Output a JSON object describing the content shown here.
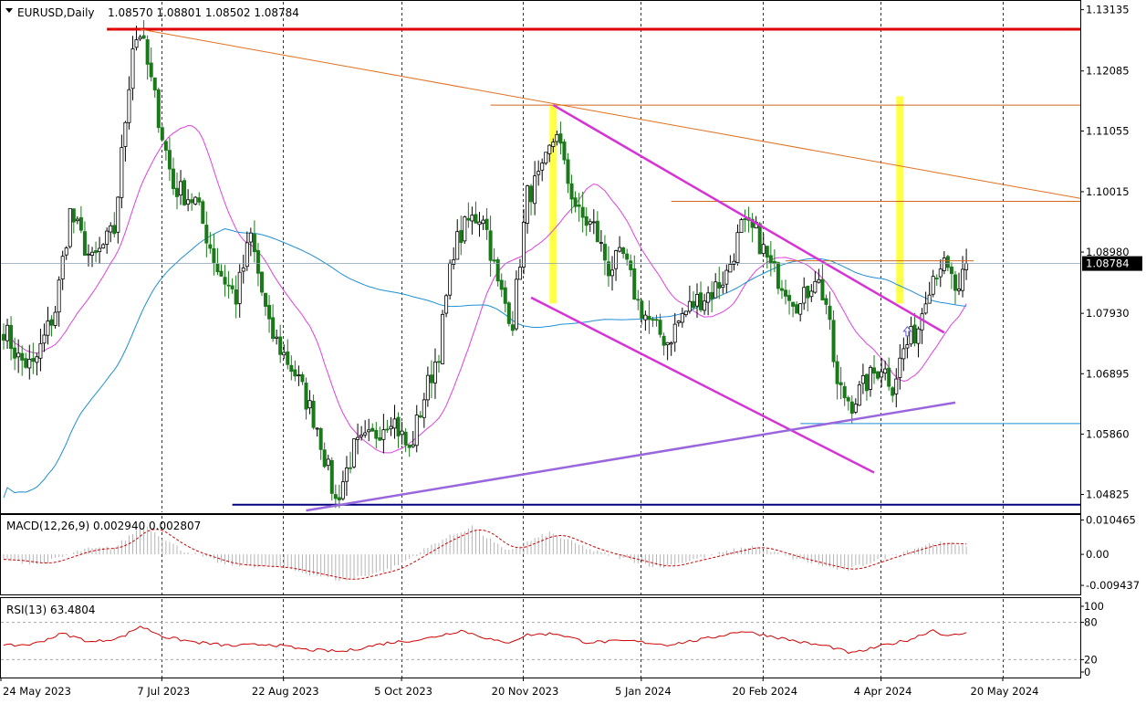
{
  "chart_data": {
    "type": "candlestick",
    "header": {
      "symbol_timeframe": "EURUSD,Daily",
      "ohlc": "1.08570 1.08801 1.08502 1.08784"
    },
    "price_axis": {
      "ticks": [
        "1.13135",
        "1.12085",
        "1.11055",
        "1.10015",
        "1.08980",
        "1.07930",
        "1.06895",
        "1.05860",
        "1.04825"
      ],
      "tick_values": [
        1.13135,
        1.12085,
        1.11055,
        1.10015,
        1.0898,
        1.0793,
        1.06895,
        1.0586,
        1.04825
      ],
      "range": [
        1.0452,
        1.1327
      ],
      "current_price": 1.08784,
      "current_label": "1.08784"
    },
    "date_axis": {
      "labels": [
        "24 May 2023",
        "7 Jul 2023",
        "22 Aug 2023",
        "5 Oct 2023",
        "20 Nov 2023",
        "5 Jan 2024",
        "20 Feb 2024",
        "4 Apr 2024",
        "20 May 2024"
      ],
      "label_bar_index": [
        0,
        31,
        64,
        96,
        129,
        161,
        194,
        226,
        259
      ],
      "last_bar_index": 261
    },
    "key_points": [
      {
        "bar": 0,
        "close": 1.0768
      },
      {
        "bar": 4,
        "close": 1.0715
      },
      {
        "bar": 8,
        "close": 1.07
      },
      {
        "bar": 14,
        "close": 1.08
      },
      {
        "bar": 18,
        "close": 1.0965
      },
      {
        "bar": 24,
        "close": 1.088
      },
      {
        "bar": 30,
        "close": 1.0935
      },
      {
        "bar": 35,
        "close": 1.1255
      },
      {
        "bar": 37,
        "close": 1.1275
      },
      {
        "bar": 41,
        "close": 1.116
      },
      {
        "bar": 46,
        "close": 1.101
      },
      {
        "bar": 52,
        "close": 1.0985
      },
      {
        "bar": 58,
        "close": 1.087
      },
      {
        "bar": 63,
        "close": 1.082
      },
      {
        "bar": 67,
        "close": 1.0925
      },
      {
        "bar": 72,
        "close": 1.0765
      },
      {
        "bar": 79,
        "close": 1.069
      },
      {
        "bar": 85,
        "close": 1.06
      },
      {
        "bar": 90,
        "close": 1.047
      },
      {
        "bar": 95,
        "close": 1.056
      },
      {
        "bar": 100,
        "close": 1.058
      },
      {
        "bar": 105,
        "close": 1.062
      },
      {
        "bar": 110,
        "close": 1.0555
      },
      {
        "bar": 114,
        "close": 1.065
      },
      {
        "bar": 118,
        "close": 1.073
      },
      {
        "bar": 122,
        "close": 1.0905
      },
      {
        "bar": 126,
        "close": 1.095
      },
      {
        "bar": 130,
        "close": 1.0965
      },
      {
        "bar": 134,
        "close": 1.084
      },
      {
        "bar": 138,
        "close": 1.078
      },
      {
        "bar": 142,
        "close": 1.0995
      },
      {
        "bar": 146,
        "close": 1.103
      },
      {
        "bar": 150,
        "close": 1.111
      },
      {
        "bar": 152,
        "close": 1.104
      },
      {
        "bar": 156,
        "close": 1.096
      },
      {
        "bar": 160,
        "close": 1.094
      },
      {
        "bar": 164,
        "close": 1.087
      },
      {
        "bar": 168,
        "close": 1.089
      },
      {
        "bar": 172,
        "close": 1.081
      },
      {
        "bar": 176,
        "close": 1.077
      },
      {
        "bar": 180,
        "close": 1.0745
      },
      {
        "bar": 184,
        "close": 1.079
      },
      {
        "bar": 188,
        "close": 1.0815
      },
      {
        "bar": 192,
        "close": 1.083
      },
      {
        "bar": 196,
        "close": 1.086
      },
      {
        "bar": 200,
        "close": 1.094
      },
      {
        "bar": 204,
        "close": 1.093
      },
      {
        "bar": 208,
        "close": 1.087
      },
      {
        "bar": 212,
        "close": 1.084
      },
      {
        "bar": 216,
        "close": 1.0805
      },
      {
        "bar": 220,
        "close": 1.086
      },
      {
        "bar": 223,
        "close": 1.081
      },
      {
        "bar": 226,
        "close": 1.0665
      },
      {
        "bar": 230,
        "close": 1.064
      },
      {
        "bar": 234,
        "close": 1.0675
      },
      {
        "bar": 238,
        "close": 1.0705
      },
      {
        "bar": 241,
        "close": 1.067
      },
      {
        "bar": 244,
        "close": 1.073
      },
      {
        "bar": 248,
        "close": 1.077
      },
      {
        "bar": 250,
        "close": 1.083
      },
      {
        "bar": 252,
        "close": 1.086
      },
      {
        "bar": 254,
        "close": 1.088
      },
      {
        "bar": 257,
        "close": 1.085
      },
      {
        "bar": 259,
        "close": 1.082
      },
      {
        "bar": 261,
        "close": 1.0878
      }
    ],
    "overlays": {
      "ma_fast_color": "#e040e0",
      "ma_slow_color": "#1e8fd6",
      "bull_color": "#000000",
      "bear_color": "#1a7a1a"
    },
    "drawings": [
      {
        "type": "hline",
        "price": 1.128,
        "from_bar": 28,
        "color": "#e00000"
      },
      {
        "type": "hline",
        "price": 1.115,
        "from_bar": 132,
        "color": "#d2691e"
      },
      {
        "type": "hline",
        "price": 1.0985,
        "from_bar": 181,
        "color": "#d2691e"
      },
      {
        "type": "hline",
        "price": 1.0883,
        "from_bar": 212,
        "to_bar": 263,
        "color": "#d2691e"
      },
      {
        "type": "hline",
        "price": 1.0604,
        "from_bar": 216,
        "color": "#1e8fd6"
      },
      {
        "type": "hline",
        "price": 1.0465,
        "from_bar": 62,
        "color": "#00007f"
      },
      {
        "type": "trend",
        "from": [
          37,
          1.128
        ],
        "to": [
          300,
          1.099
        ],
        "color": "#e07020"
      },
      {
        "type": "trend",
        "from": [
          149,
          1.115
        ],
        "to": [
          255,
          1.076
        ],
        "color": "#d633d6"
      },
      {
        "type": "trend",
        "from": [
          143,
          1.082
        ],
        "to": [
          236,
          1.052
        ],
        "color": "#d633d6"
      },
      {
        "type": "trend",
        "from": [
          82,
          1.0455
        ],
        "to": [
          258,
          1.064
        ],
        "color": "#9a66dd"
      },
      {
        "type": "vbar",
        "bar": 149,
        "top": 1.115,
        "bottom": 1.081,
        "color": "#ffff44"
      },
      {
        "type": "vbar",
        "bar": 243,
        "top": 1.1165,
        "bottom": 1.081,
        "color": "#ffff44"
      },
      {
        "type": "arrow",
        "bar": 245,
        "price": 1.077,
        "color": "#6a5acd"
      }
    ],
    "macd": {
      "label": "MACD(12,26,9) 0.002940 0.002807",
      "ticks": [
        "0.010465",
        "0.00",
        "-0.009437"
      ],
      "tick_values": [
        0.010465,
        0,
        -0.009437
      ],
      "range": [
        -0.0122,
        0.0117
      ],
      "signal_color": "#d00000",
      "hist_color": "#b4b4b4",
      "key_points": [
        {
          "bar": 0,
          "value": -0.0015
        },
        {
          "bar": 10,
          "value": -0.003
        },
        {
          "bar": 22,
          "value": 0.0015
        },
        {
          "bar": 30,
          "value": 0.002
        },
        {
          "bar": 38,
          "value": 0.009
        },
        {
          "bar": 48,
          "value": 0.0015
        },
        {
          "bar": 60,
          "value": -0.003
        },
        {
          "bar": 75,
          "value": -0.004
        },
        {
          "bar": 92,
          "value": -0.008
        },
        {
          "bar": 105,
          "value": -0.0045
        },
        {
          "bar": 118,
          "value": 0.004
        },
        {
          "bar": 127,
          "value": 0.0085
        },
        {
          "bar": 136,
          "value": 0.001
        },
        {
          "bar": 148,
          "value": 0.0065
        },
        {
          "bar": 160,
          "value": 0.001
        },
        {
          "bar": 178,
          "value": -0.004
        },
        {
          "bar": 195,
          "value": 0.0005
        },
        {
          "bar": 203,
          "value": 0.0025
        },
        {
          "bar": 215,
          "value": -0.0015
        },
        {
          "bar": 228,
          "value": -0.005
        },
        {
          "bar": 240,
          "value": -0.0005
        },
        {
          "bar": 252,
          "value": 0.0035
        },
        {
          "bar": 261,
          "value": 0.00294
        }
      ]
    },
    "rsi": {
      "label": "RSI(13) 63.4804",
      "ticks": [
        "100",
        "80",
        "20",
        "0"
      ],
      "tick_values": [
        100,
        80,
        20,
        0
      ],
      "range": [
        0,
        100
      ],
      "line_color": "#d00000",
      "key_points": [
        {
          "bar": 0,
          "value": 42
        },
        {
          "bar": 8,
          "value": 45
        },
        {
          "bar": 16,
          "value": 62
        },
        {
          "bar": 24,
          "value": 48
        },
        {
          "bar": 32,
          "value": 56
        },
        {
          "bar": 37,
          "value": 74
        },
        {
          "bar": 44,
          "value": 56
        },
        {
          "bar": 52,
          "value": 48
        },
        {
          "bar": 62,
          "value": 42
        },
        {
          "bar": 72,
          "value": 45
        },
        {
          "bar": 82,
          "value": 36
        },
        {
          "bar": 92,
          "value": 33
        },
        {
          "bar": 104,
          "value": 47
        },
        {
          "bar": 114,
          "value": 53
        },
        {
          "bar": 124,
          "value": 67
        },
        {
          "bar": 136,
          "value": 46
        },
        {
          "bar": 142,
          "value": 60
        },
        {
          "bar": 150,
          "value": 62
        },
        {
          "bar": 158,
          "value": 48
        },
        {
          "bar": 170,
          "value": 50
        },
        {
          "bar": 180,
          "value": 44
        },
        {
          "bar": 190,
          "value": 53
        },
        {
          "bar": 200,
          "value": 66
        },
        {
          "bar": 208,
          "value": 58
        },
        {
          "bar": 218,
          "value": 46
        },
        {
          "bar": 224,
          "value": 41
        },
        {
          "bar": 230,
          "value": 30
        },
        {
          "bar": 238,
          "value": 42
        },
        {
          "bar": 246,
          "value": 53
        },
        {
          "bar": 252,
          "value": 68
        },
        {
          "bar": 256,
          "value": 57
        },
        {
          "bar": 261,
          "value": 63.48
        }
      ]
    }
  }
}
